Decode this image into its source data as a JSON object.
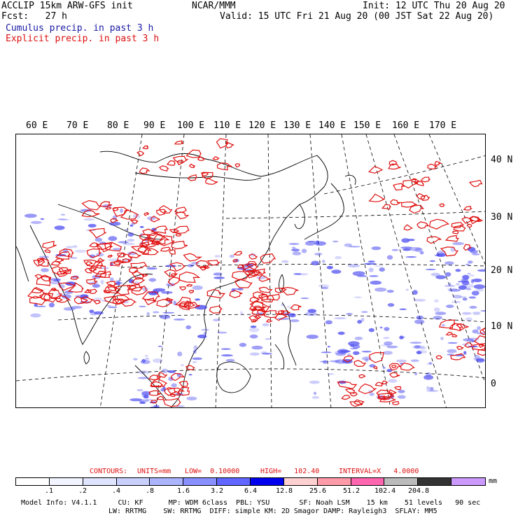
{
  "header": {
    "left_line1": "ACCLIP 15km ARW-GFS init",
    "left_line2": "Fcst:   27 h",
    "center_line1": "NCAR/MMM",
    "right_line1": "Init: 12 UTC Thu 20 Aug 20",
    "right_line2": "Valid: 15 UTC Fri 21 Aug 20 (00 JST Sat 22 Aug 20)",
    "legend_cumulus": "Cumulus precip. in past 3 h",
    "legend_explicit": "Explicit precip. in past 3 h"
  },
  "map": {
    "lon_labels": [
      "60 E",
      "70 E",
      "80 E",
      "90 E",
      "100 E",
      "110 E",
      "120 E",
      "130 E",
      "140 E",
      "150 E",
      "160 E",
      "170 E"
    ],
    "lat_labels": [
      "40 N",
      "30 N",
      "20 N",
      "10 N",
      "0"
    ],
    "colors": {
      "cumulus": "#3a3af0",
      "explicit": "#e01010",
      "coast": "#000000",
      "grid": "#000000"
    }
  },
  "contours": {
    "label": "CONTOURS:",
    "units": "UNITS=mm",
    "low": "LOW=  0.10000",
    "high": "HIGH=   102.40",
    "interval": "INTERVAL=X   4.0000"
  },
  "colorbar": {
    "colors": [
      "#ffffff",
      "#f2f4ff",
      "#dfe4ff",
      "#c9d0ff",
      "#aab4ff",
      "#8890ff",
      "#6066ff",
      "#0000ee",
      "#ffd0d0",
      "#ff9aa8",
      "#ff66b0",
      "#bbbbbb",
      "#333333",
      "#cc99ff"
    ],
    "ticks": [
      ".1",
      ".2",
      ".4",
      ".8",
      "1.6",
      "3.2",
      "6.4",
      "12.8",
      "25.6",
      "51.2",
      "102.4",
      "204.8"
    ],
    "units": "mm"
  },
  "footer": {
    "line1": "Model Info: V4.1.1     CU: KF      MP: WDM 6class  PBL: YSU       SF: Noah LSM    15 km    51 levels   90 sec",
    "line2": "LW: RRTMG    SW: RRTMG  DIFF: simple KM: 2D Smagor DAMP: Rayleigh3  SFLAY: MM5"
  }
}
